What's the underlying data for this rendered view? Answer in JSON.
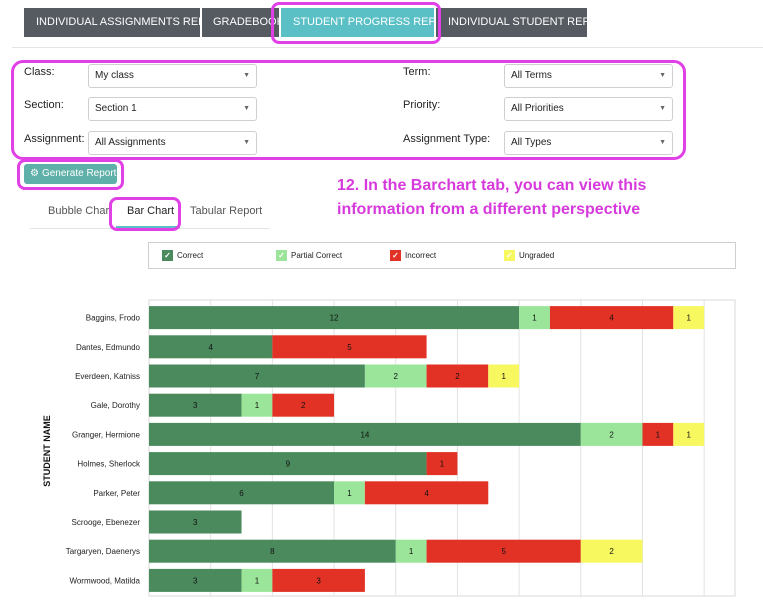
{
  "top_tabs": [
    {
      "label": "INDIVIDUAL ASSIGNMENTS REPORT",
      "active": false
    },
    {
      "label": "GRADEBOOK",
      "active": false
    },
    {
      "label": "STUDENT PROGRESS REPORT",
      "active": true
    },
    {
      "label": "INDIVIDUAL STUDENT REPORT",
      "active": false
    }
  ],
  "filters": {
    "class": {
      "label": "Class:",
      "value": "My class"
    },
    "section": {
      "label": "Section:",
      "value": "Section 1"
    },
    "assignment": {
      "label": "Assignment:",
      "value": "All Assignments"
    },
    "term": {
      "label": "Term:",
      "value": "All Terms"
    },
    "priority": {
      "label": "Priority:",
      "value": "All Priorities"
    },
    "assignment_type": {
      "label": "Assignment Type:",
      "value": "All Types"
    }
  },
  "generate_button": {
    "label": "Generate Report",
    "icon": "gears-icon"
  },
  "annotation": "12. In the Barchart tab, you can view this information from a different perspective",
  "sub_tabs": [
    {
      "label": "Bubble Chart",
      "active": false
    },
    {
      "label": "Bar Chart",
      "active": true
    },
    {
      "label": "Tabular Report",
      "active": false
    }
  ],
  "legend": [
    {
      "label": "Correct",
      "color": "#4a8a5c",
      "check": "✓"
    },
    {
      "label": "Partial Correct",
      "color": "#9be59a",
      "check": "✓"
    },
    {
      "label": "Incorrect",
      "color": "#e23225",
      "check": "✓"
    },
    {
      "label": "Ungraded",
      "color": "#f7f760",
      "check": "✓"
    }
  ],
  "colors": {
    "accent": "#5bc0c6",
    "highlight": "#e040e6",
    "tab_dark": "#555b61",
    "button": "#5fb0a8"
  },
  "chart_data": {
    "type": "bar",
    "orientation": "horizontal",
    "stacked": true,
    "ylabel": "STUDENT NAME",
    "xlim": [
      0,
      19
    ],
    "grid": true,
    "categories": [
      "Baggins, Frodo",
      "Dantes, Edmundo",
      "Everdeen, Katniss",
      "Gale, Dorothy",
      "Granger, Hermione",
      "Holmes, Sherlock",
      "Parker, Peter",
      "Scrooge, Ebenezer",
      "Targaryen, Daenerys",
      "Wormwood, Matilda"
    ],
    "series": [
      {
        "name": "Correct",
        "color": "#4a8a5c",
        "values": [
          12,
          4,
          7,
          3,
          14,
          9,
          6,
          3,
          8,
          3
        ]
      },
      {
        "name": "Partial Correct",
        "color": "#9be59a",
        "values": [
          1,
          0,
          2,
          1,
          2,
          0,
          1,
          0,
          1,
          1
        ]
      },
      {
        "name": "Incorrect",
        "color": "#e23225",
        "values": [
          4,
          5,
          2,
          2,
          1,
          1,
          4,
          0,
          5,
          3
        ]
      },
      {
        "name": "Ungraded",
        "color": "#f7f760",
        "values": [
          1,
          0,
          1,
          0,
          1,
          0,
          0,
          0,
          2,
          0
        ]
      }
    ]
  }
}
